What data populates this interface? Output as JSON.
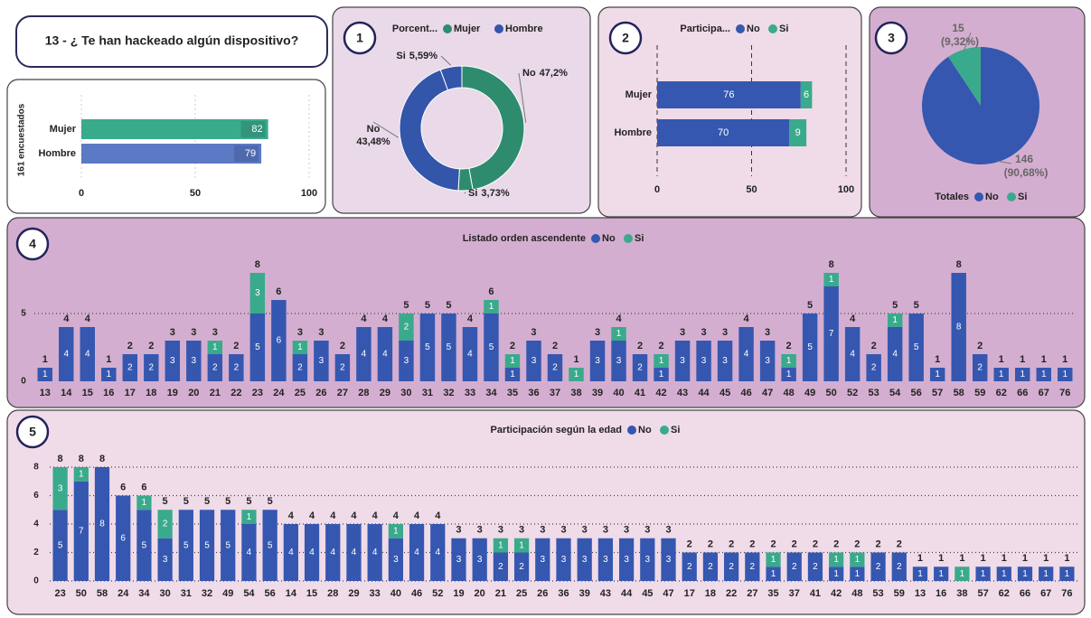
{
  "header": {
    "title": "13 - ¿ Te han hackeado algún dispositivo?"
  },
  "chart_data": [
    {
      "type": "bar",
      "orientation": "horizontal",
      "axis_label": "161 encuestados",
      "categories": [
        "Mujer",
        "Hombre"
      ],
      "values": [
        82,
        79
      ],
      "colors": [
        "#3aaa8c",
        "#5b79c4"
      ],
      "xlim": [
        0,
        100
      ],
      "xticks": [
        0,
        50,
        100
      ],
      "grid": true
    },
    {
      "type": "donut",
      "badge": "1",
      "title": "Porcent...",
      "categories": [
        "No",
        "Si"
      ],
      "series": [
        {
          "name": "Mujer",
          "color": "#2e8b6e",
          "values": [
            47.2,
            3.73
          ],
          "value_labels": [
            "47,2%",
            "3,73%"
          ]
        },
        {
          "name": "Hombre",
          "color": "#3355aa",
          "values": [
            43.48,
            5.59
          ],
          "value_labels": [
            "43,48%",
            "5,59%"
          ]
        }
      ]
    },
    {
      "type": "bar",
      "orientation": "horizontal",
      "stacked": true,
      "badge": "2",
      "title": "Participa...",
      "categories": [
        "Mujer",
        "Hombre"
      ],
      "series": [
        {
          "name": "No",
          "color": "#3557b0",
          "values": [
            76,
            70
          ]
        },
        {
          "name": "Si",
          "color": "#3aaa8c",
          "values": [
            6,
            9
          ]
        }
      ],
      "xlim": [
        0,
        100
      ],
      "xticks": [
        0,
        50,
        100
      ],
      "grid": true
    },
    {
      "type": "pie",
      "badge": "3",
      "legend_title": "Totales",
      "categories": [
        "No",
        "Si"
      ],
      "values": [
        146,
        15
      ],
      "colors": [
        "#3557b0",
        "#3aaa8c"
      ],
      "percent_labels": [
        "(90,68%)",
        "(9,32%)"
      ]
    },
    {
      "type": "bar",
      "stacked": true,
      "badge": "4",
      "title": "Listado orden ascendente",
      "categories": [
        "13",
        "14",
        "15",
        "16",
        "17",
        "18",
        "19",
        "20",
        "21",
        "22",
        "23",
        "24",
        "25",
        "26",
        "27",
        "28",
        "29",
        "30",
        "31",
        "32",
        "33",
        "34",
        "35",
        "36",
        "37",
        "38",
        "39",
        "40",
        "41",
        "42",
        "43",
        "44",
        "45",
        "46",
        "47",
        "48",
        "49",
        "50",
        "52",
        "53",
        "54",
        "56",
        "57",
        "58",
        "59",
        "62",
        "66",
        "67",
        "76"
      ],
      "series": [
        {
          "name": "No",
          "color": "#3557b0",
          "values": [
            1,
            4,
            4,
            1,
            2,
            2,
            3,
            3,
            2,
            2,
            5,
            6,
            2,
            3,
            2,
            4,
            4,
            3,
            5,
            5,
            4,
            5,
            1,
            3,
            2,
            0,
            3,
            3,
            2,
            1,
            3,
            3,
            3,
            4,
            3,
            1,
            5,
            7,
            4,
            2,
            4,
            5,
            1,
            8,
            2,
            1,
            1,
            1,
            1
          ]
        },
        {
          "name": "Si",
          "color": "#3aaa8c",
          "values": [
            0,
            0,
            0,
            0,
            0,
            0,
            0,
            0,
            1,
            0,
            3,
            0,
            1,
            0,
            0,
            0,
            0,
            2,
            0,
            0,
            0,
            1,
            1,
            0,
            0,
            1,
            0,
            1,
            0,
            1,
            0,
            0,
            0,
            0,
            0,
            1,
            0,
            1,
            0,
            0,
            1,
            0,
            0,
            0,
            0,
            0,
            0,
            0,
            0
          ]
        }
      ],
      "totals": [
        1,
        4,
        4,
        1,
        2,
        2,
        3,
        3,
        3,
        2,
        8,
        6,
        3,
        3,
        2,
        4,
        4,
        5,
        5,
        5,
        4,
        6,
        2,
        3,
        2,
        1,
        3,
        4,
        2,
        2,
        3,
        3,
        3,
        4,
        3,
        2,
        5,
        8,
        4,
        2,
        5,
        5,
        1,
        8,
        2,
        1,
        1,
        1,
        1
      ],
      "ylim": [
        0,
        8
      ],
      "yticks": [
        0,
        5
      ],
      "grid": true
    },
    {
      "type": "bar",
      "stacked": true,
      "badge": "5",
      "title": "Participación según la edad",
      "categories": [
        "23",
        "50",
        "58",
        "24",
        "34",
        "30",
        "31",
        "32",
        "49",
        "54",
        "56",
        "14",
        "15",
        "28",
        "29",
        "33",
        "40",
        "46",
        "52",
        "19",
        "20",
        "21",
        "25",
        "26",
        "36",
        "39",
        "43",
        "44",
        "45",
        "47",
        "17",
        "18",
        "22",
        "27",
        "35",
        "37",
        "41",
        "42",
        "48",
        "53",
        "59",
        "13",
        "16",
        "38",
        "57",
        "62",
        "66",
        "67",
        "76"
      ],
      "series": [
        {
          "name": "No",
          "color": "#3557b0",
          "values": [
            5,
            7,
            8,
            6,
            5,
            3,
            5,
            5,
            5,
            4,
            5,
            4,
            4,
            4,
            4,
            4,
            3,
            4,
            4,
            3,
            3,
            2,
            2,
            3,
            3,
            3,
            3,
            3,
            3,
            3,
            2,
            2,
            2,
            2,
            1,
            2,
            2,
            1,
            1,
            2,
            2,
            1,
            1,
            0,
            1,
            1,
            1,
            1,
            1
          ]
        },
        {
          "name": "Si",
          "color": "#3aaa8c",
          "values": [
            3,
            1,
            0,
            0,
            1,
            2,
            0,
            0,
            0,
            1,
            0,
            0,
            0,
            0,
            0,
            0,
            1,
            0,
            0,
            0,
            0,
            1,
            1,
            0,
            0,
            0,
            0,
            0,
            0,
            0,
            0,
            0,
            0,
            0,
            1,
            0,
            0,
            1,
            1,
            0,
            0,
            0,
            0,
            1,
            0,
            0,
            0,
            0,
            0
          ]
        }
      ],
      "totals": [
        8,
        8,
        8,
        6,
        6,
        5,
        5,
        5,
        5,
        5,
        5,
        4,
        4,
        4,
        4,
        4,
        4,
        4,
        4,
        3,
        3,
        3,
        3,
        3,
        3,
        3,
        3,
        3,
        3,
        3,
        2,
        2,
        2,
        2,
        2,
        2,
        2,
        2,
        2,
        2,
        2,
        1,
        1,
        1,
        1,
        1,
        1,
        1,
        1
      ],
      "ylim": [
        0,
        8
      ],
      "yticks": [
        0,
        2,
        4,
        6,
        8
      ],
      "grid": true
    }
  ]
}
